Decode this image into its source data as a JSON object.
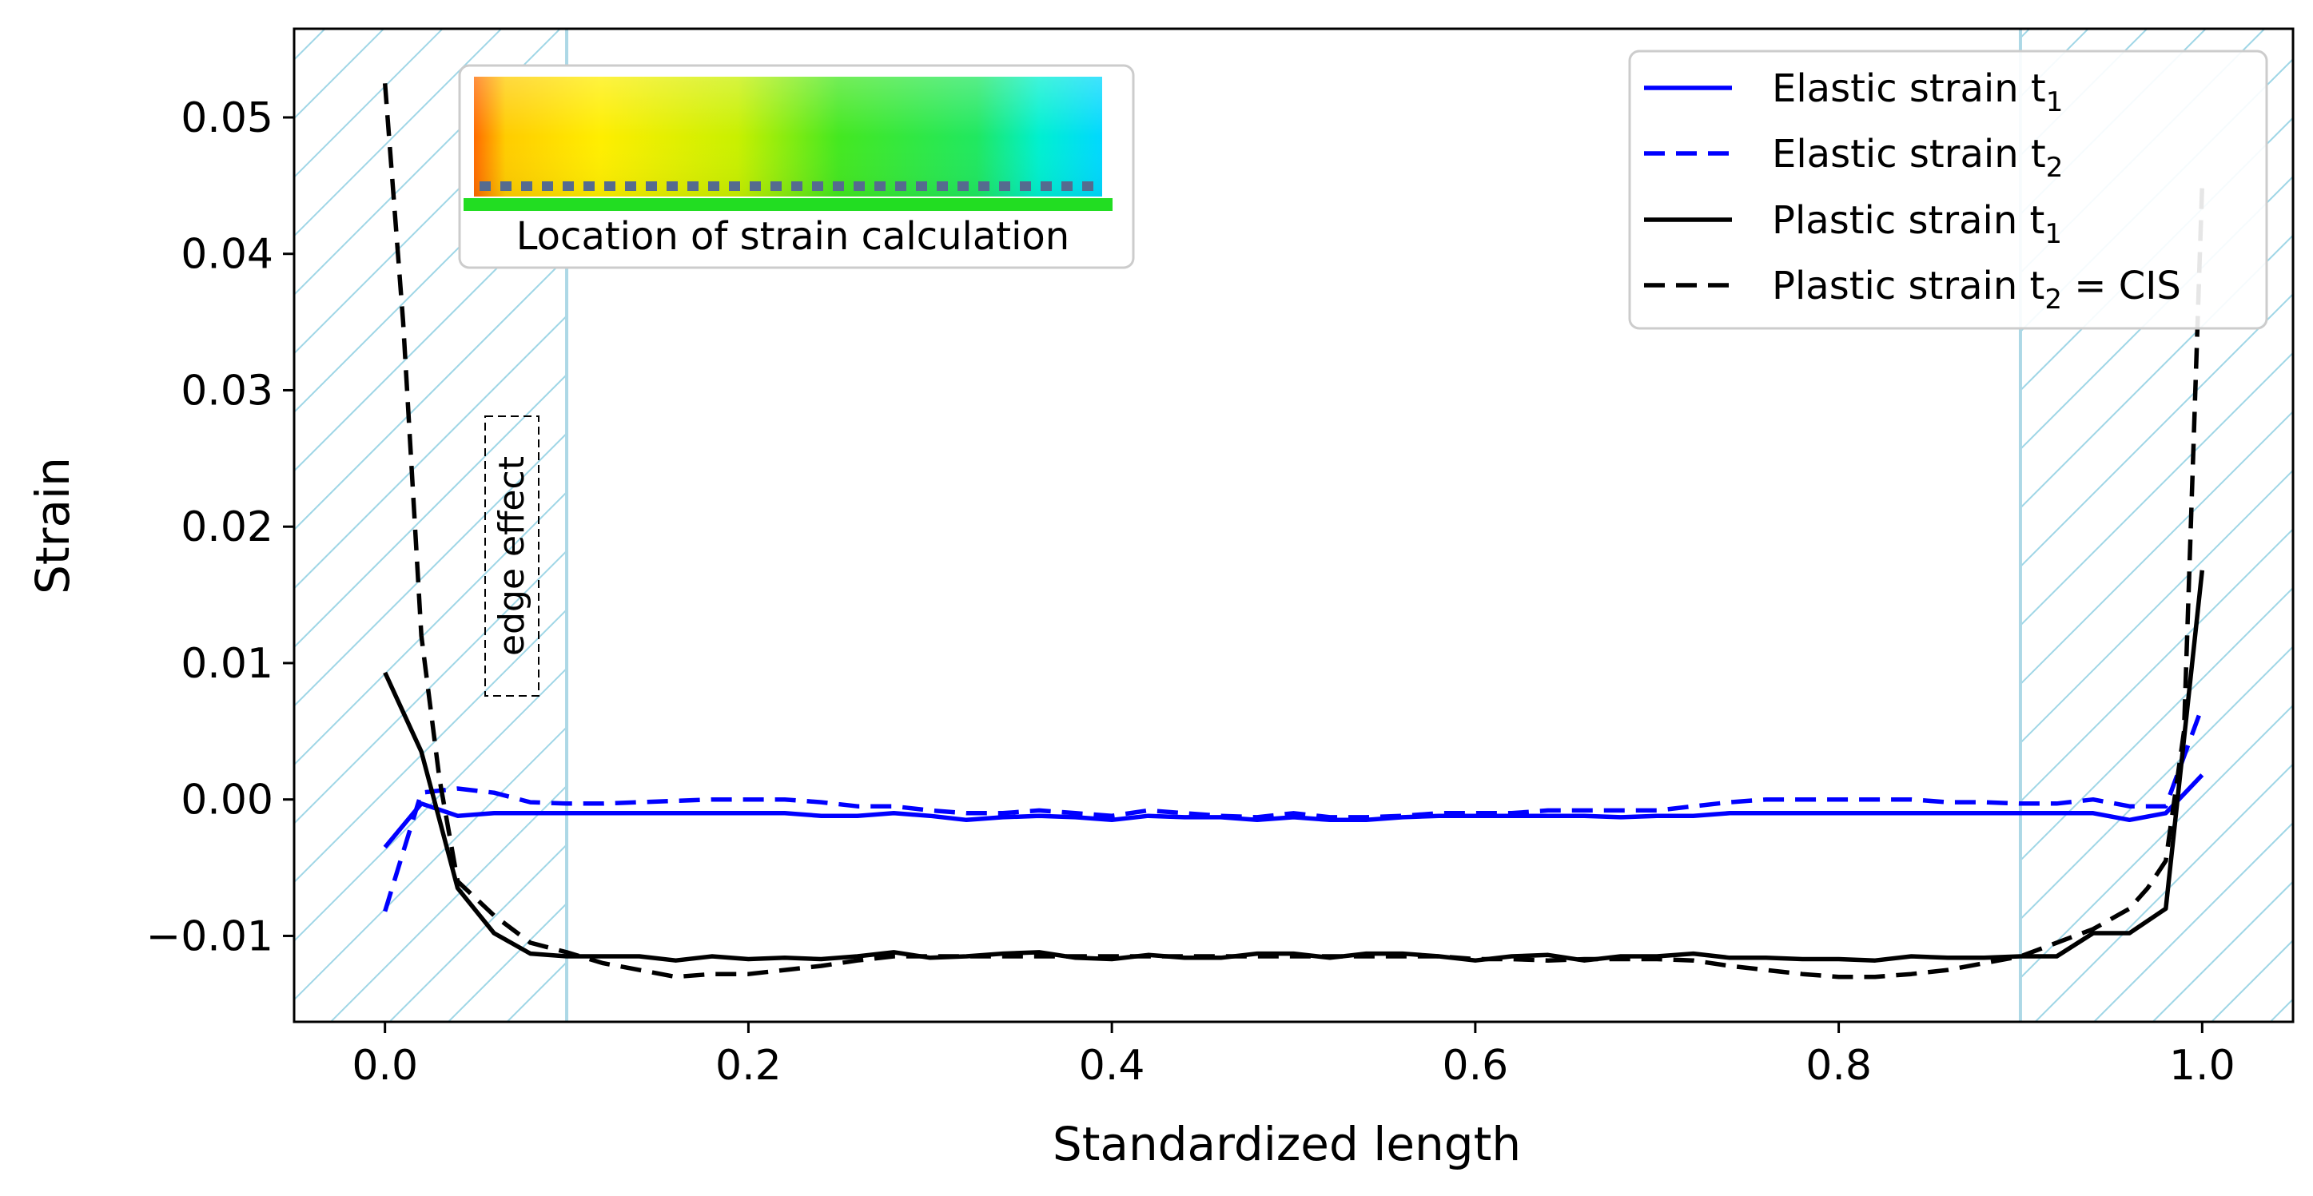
{
  "chart_data": {
    "type": "line",
    "title": "",
    "xlabel": "Standardized length",
    "ylabel": "Strain",
    "xlim": [
      -0.05,
      1.05
    ],
    "ylim": [
      -0.0163,
      0.0565
    ],
    "grid": false,
    "xticks": [
      0.0,
      0.2,
      0.4,
      0.6,
      0.8,
      1.0
    ],
    "xtick_labels": [
      "0.0",
      "0.2",
      "0.4",
      "0.6",
      "0.8",
      "1.0"
    ],
    "yticks": [
      -0.01,
      0.0,
      0.01,
      0.02,
      0.03,
      0.04,
      0.05
    ],
    "ytick_labels": [
      "−0.01",
      "0.00",
      "0.01",
      "0.02",
      "0.03",
      "0.04",
      "0.05"
    ],
    "shaded_regions": [
      {
        "label": "left-edge",
        "x0": -0.05,
        "x1": 0.1,
        "color": "#add8e6"
      },
      {
        "label": "right-edge",
        "x0": 0.9,
        "x1": 1.05,
        "color": "#add8e6"
      }
    ],
    "annotations": [
      {
        "text": "edge effect",
        "x": 0.07,
        "y": 0.0175,
        "rotation": -90
      }
    ],
    "inset": {
      "caption": "Location of strain calculation"
    },
    "legend": {
      "position": "top-right",
      "entries": [
        {
          "main": "Elastic strain t",
          "sub": "1",
          "suffix": ""
        },
        {
          "main": "Elastic strain t",
          "sub": "2",
          "suffix": ""
        },
        {
          "main": "Plastic strain t",
          "sub": "1",
          "suffix": ""
        },
        {
          "main": "Plastic strain t",
          "sub": "2",
          "suffix": " = CIS"
        }
      ]
    },
    "series": [
      {
        "name": "Elastic strain t1",
        "color": "#0000ff",
        "dash": "solid",
        "x": [
          0.0,
          0.02,
          0.04,
          0.06,
          0.08,
          0.1,
          0.12,
          0.14,
          0.16,
          0.18,
          0.2,
          0.22,
          0.24,
          0.26,
          0.28,
          0.3,
          0.32,
          0.34,
          0.36,
          0.38,
          0.4,
          0.42,
          0.44,
          0.46,
          0.48,
          0.5,
          0.52,
          0.54,
          0.56,
          0.58,
          0.6,
          0.62,
          0.64,
          0.66,
          0.68,
          0.7,
          0.72,
          0.74,
          0.76,
          0.78,
          0.8,
          0.82,
          0.84,
          0.86,
          0.88,
          0.9,
          0.92,
          0.94,
          0.96,
          0.98,
          1.0
        ],
        "y": [
          -0.0035,
          -0.0003,
          -0.0012,
          -0.001,
          -0.001,
          -0.001,
          -0.001,
          -0.001,
          -0.001,
          -0.001,
          -0.001,
          -0.001,
          -0.0012,
          -0.0012,
          -0.001,
          -0.0012,
          -0.0015,
          -0.0013,
          -0.0012,
          -0.0013,
          -0.0015,
          -0.0012,
          -0.0013,
          -0.0013,
          -0.0015,
          -0.0013,
          -0.0015,
          -0.0015,
          -0.0013,
          -0.0012,
          -0.0012,
          -0.0012,
          -0.0012,
          -0.0012,
          -0.0013,
          -0.0012,
          -0.0012,
          -0.001,
          -0.001,
          -0.001,
          -0.001,
          -0.001,
          -0.001,
          -0.001,
          -0.001,
          -0.001,
          -0.001,
          -0.001,
          -0.0015,
          -0.001,
          0.0018
        ]
      },
      {
        "name": "Elastic strain t2",
        "color": "#0000ff",
        "dash": "dashed",
        "x": [
          0.0,
          0.02,
          0.04,
          0.06,
          0.08,
          0.1,
          0.12,
          0.14,
          0.16,
          0.18,
          0.2,
          0.22,
          0.24,
          0.26,
          0.28,
          0.3,
          0.32,
          0.34,
          0.36,
          0.38,
          0.4,
          0.42,
          0.44,
          0.46,
          0.48,
          0.5,
          0.52,
          0.54,
          0.56,
          0.58,
          0.6,
          0.62,
          0.64,
          0.66,
          0.68,
          0.7,
          0.72,
          0.74,
          0.76,
          0.78,
          0.8,
          0.82,
          0.84,
          0.86,
          0.88,
          0.9,
          0.92,
          0.94,
          0.96,
          0.98,
          1.0
        ],
        "y": [
          -0.0082,
          0.0005,
          0.0008,
          0.0005,
          -0.0002,
          -0.0003,
          -0.0003,
          -0.0002,
          -0.0001,
          0.0,
          0.0,
          0.0,
          -0.0002,
          -0.0005,
          -0.0005,
          -0.0008,
          -0.001,
          -0.001,
          -0.0008,
          -0.001,
          -0.0012,
          -0.0008,
          -0.001,
          -0.0012,
          -0.0013,
          -0.001,
          -0.0013,
          -0.0013,
          -0.0012,
          -0.001,
          -0.001,
          -0.001,
          -0.0008,
          -0.0008,
          -0.0008,
          -0.0008,
          -0.0005,
          -0.0002,
          0.0,
          0.0,
          0.0,
          0.0,
          0.0,
          -0.0002,
          -0.0002,
          -0.0003,
          -0.0003,
          0.0,
          -0.0005,
          -0.0005,
          0.0068
        ]
      },
      {
        "name": "Plastic strain t1",
        "color": "#000000",
        "dash": "solid",
        "x": [
          0.0,
          0.02,
          0.04,
          0.06,
          0.08,
          0.1,
          0.12,
          0.14,
          0.16,
          0.18,
          0.2,
          0.22,
          0.24,
          0.26,
          0.28,
          0.3,
          0.32,
          0.34,
          0.36,
          0.38,
          0.4,
          0.42,
          0.44,
          0.46,
          0.48,
          0.5,
          0.52,
          0.54,
          0.56,
          0.58,
          0.6,
          0.62,
          0.64,
          0.66,
          0.68,
          0.7,
          0.72,
          0.74,
          0.76,
          0.78,
          0.8,
          0.82,
          0.84,
          0.86,
          0.88,
          0.9,
          0.92,
          0.94,
          0.96,
          0.98,
          1.0
        ],
        "y": [
          0.0093,
          0.0035,
          -0.0065,
          -0.0098,
          -0.0113,
          -0.0115,
          -0.0115,
          -0.0115,
          -0.0118,
          -0.0115,
          -0.0117,
          -0.0116,
          -0.0117,
          -0.0115,
          -0.0112,
          -0.0116,
          -0.0115,
          -0.0113,
          -0.0112,
          -0.0116,
          -0.0117,
          -0.0114,
          -0.0116,
          -0.0116,
          -0.0113,
          -0.0113,
          -0.0116,
          -0.0113,
          -0.0113,
          -0.0115,
          -0.0118,
          -0.0115,
          -0.0114,
          -0.0118,
          -0.0115,
          -0.0115,
          -0.0113,
          -0.0116,
          -0.0116,
          -0.0117,
          -0.0117,
          -0.0118,
          -0.0115,
          -0.0116,
          -0.0116,
          -0.0115,
          -0.0115,
          -0.0098,
          -0.0098,
          -0.008,
          0.0168
        ]
      },
      {
        "name": "Plastic strain t2 = CIS",
        "color": "#000000",
        "dash": "dashed",
        "x": [
          0.0,
          0.01,
          0.02,
          0.03,
          0.04,
          0.06,
          0.08,
          0.1,
          0.12,
          0.14,
          0.16,
          0.18,
          0.2,
          0.22,
          0.24,
          0.26,
          0.28,
          0.3,
          0.32,
          0.34,
          0.36,
          0.38,
          0.4,
          0.42,
          0.44,
          0.46,
          0.48,
          0.5,
          0.52,
          0.54,
          0.56,
          0.58,
          0.6,
          0.62,
          0.64,
          0.66,
          0.68,
          0.7,
          0.72,
          0.74,
          0.76,
          0.78,
          0.8,
          0.82,
          0.84,
          0.86,
          0.88,
          0.9,
          0.92,
          0.94,
          0.96,
          0.97,
          0.98,
          0.99,
          1.0
        ],
        "y": [
          0.0525,
          0.035,
          0.012,
          0.0015,
          -0.006,
          -0.0085,
          -0.0105,
          -0.0112,
          -0.012,
          -0.0125,
          -0.013,
          -0.0128,
          -0.0128,
          -0.0125,
          -0.0122,
          -0.0118,
          -0.0115,
          -0.0115,
          -0.0115,
          -0.0115,
          -0.0115,
          -0.0115,
          -0.0115,
          -0.0115,
          -0.0115,
          -0.0115,
          -0.0115,
          -0.0115,
          -0.0115,
          -0.0115,
          -0.0115,
          -0.0115,
          -0.0117,
          -0.0117,
          -0.0118,
          -0.0117,
          -0.0117,
          -0.0117,
          -0.0118,
          -0.0122,
          -0.0125,
          -0.0128,
          -0.013,
          -0.013,
          -0.0128,
          -0.0125,
          -0.012,
          -0.0115,
          -0.0105,
          -0.0095,
          -0.008,
          -0.0065,
          -0.0045,
          0.005,
          0.045
        ]
      }
    ]
  }
}
